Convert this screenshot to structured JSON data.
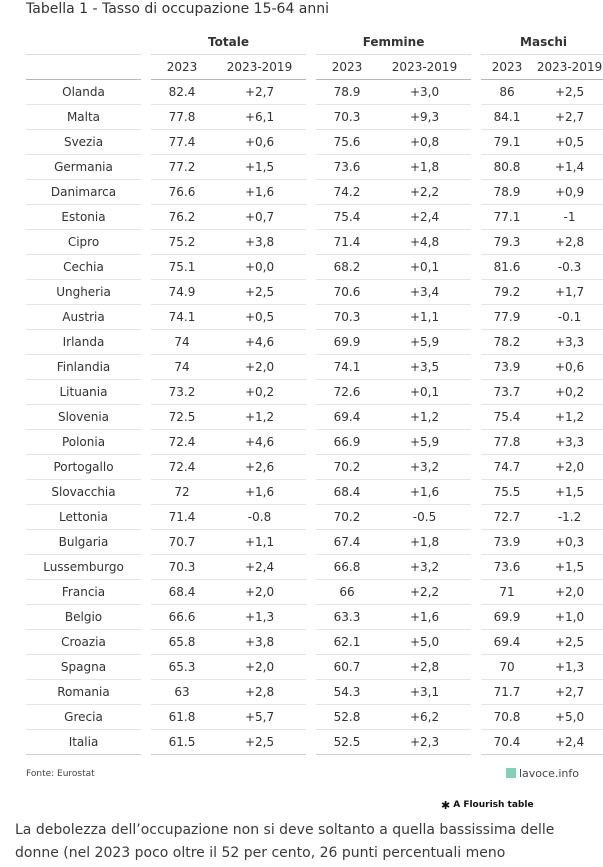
{
  "title": "Tabella 1 - Tasso di occupazione 15-64 anni",
  "table": {
    "groups": [
      "Totale",
      "Femmine",
      "Maschi"
    ],
    "subheaders": [
      "2023",
      "2023-2019",
      "2023",
      "2023-2019",
      "2023",
      "2023-2019"
    ],
    "rows": [
      [
        "Olanda",
        "82.4",
        "+2,7",
        "78.9",
        "+3,0",
        "86",
        "+2,5"
      ],
      [
        "Malta",
        "77.8",
        "+6,1",
        "70.3",
        "+9,3",
        "84.1",
        "+2,7"
      ],
      [
        "Svezia",
        "77.4",
        "+0,6",
        "75.6",
        "+0,8",
        "79.1",
        "+0,5"
      ],
      [
        "Germania",
        "77.2",
        "+1,5",
        "73.6",
        "+1,8",
        "80.8",
        "+1,4"
      ],
      [
        "Danimarca",
        "76.6",
        "+1,6",
        "74.2",
        "+2,2",
        "78.9",
        "+0,9"
      ],
      [
        "Estonia",
        "76.2",
        "+0,7",
        "75.4",
        "+2,4",
        "77.1",
        "-1"
      ],
      [
        "Cipro",
        "75.2",
        "+3,8",
        "71.4",
        "+4,8",
        "79.3",
        "+2,8"
      ],
      [
        "Cechia",
        "75.1",
        "+0,0",
        "68.2",
        "+0,1",
        "81.6",
        "-0.3"
      ],
      [
        "Ungheria",
        "74.9",
        "+2,5",
        "70.6",
        "+3,4",
        "79.2",
        "+1,7"
      ],
      [
        "Austria",
        "74.1",
        "+0,5",
        "70.3",
        "+1,1",
        "77.9",
        "-0.1"
      ],
      [
        "Irlanda",
        "74",
        "+4,6",
        "69.9",
        "+5,9",
        "78.2",
        "+3,3"
      ],
      [
        "Finlandia",
        "74",
        "+2,0",
        "74.1",
        "+3,5",
        "73.9",
        "+0,6"
      ],
      [
        "Lituania",
        "73.2",
        "+0,2",
        "72.6",
        "+0,1",
        "73.7",
        "+0,2"
      ],
      [
        "Slovenia",
        "72.5",
        "+1,2",
        "69.4",
        "+1,2",
        "75.4",
        "+1,2"
      ],
      [
        "Polonia",
        "72.4",
        "+4,6",
        "66.9",
        "+5,9",
        "77.8",
        "+3,3"
      ],
      [
        "Portogallo",
        "72.4",
        "+2,6",
        "70.2",
        "+3,2",
        "74.7",
        "+2,0"
      ],
      [
        "Slovacchia",
        "72",
        "+1,6",
        "68.4",
        "+1,6",
        "75.5",
        "+1,5"
      ],
      [
        "Lettonia",
        "71.4",
        "-0.8",
        "70.2",
        "-0.5",
        "72.7",
        "-1.2"
      ],
      [
        "Bulgaria",
        "70.7",
        "+1,1",
        "67.4",
        "+1,8",
        "73.9",
        "+0,3"
      ],
      [
        "Lussemburgo",
        "70.3",
        "+2,4",
        "66.8",
        "+3,2",
        "73.6",
        "+1,5"
      ],
      [
        "Francia",
        "68.4",
        "+2,0",
        "66",
        "+2,2",
        "71",
        "+2,0"
      ],
      [
        "Belgio",
        "66.6",
        "+1,3",
        "63.3",
        "+1,6",
        "69.9",
        "+1,0"
      ],
      [
        "Croazia",
        "65.8",
        "+3,8",
        "62.1",
        "+5,0",
        "69.4",
        "+2,5"
      ],
      [
        "Spagna",
        "65.3",
        "+2,0",
        "60.7",
        "+2,8",
        "70",
        "+1,3"
      ],
      [
        "Romania",
        "63",
        "+2,8",
        "54.3",
        "+3,1",
        "71.7",
        "+2,7"
      ],
      [
        "Grecia",
        "61.8",
        "+5,7",
        "52.8",
        "+6,2",
        "70.8",
        "+5,0"
      ],
      [
        "Italia",
        "61.5",
        "+2,5",
        "52.5",
        "+2,3",
        "70.4",
        "+2,4"
      ]
    ]
  },
  "source": "Fonte: Eurostat",
  "logo": {
    "text": "lavoce.info",
    "icon": "lavoce-logo-icon",
    "color": "#7fd1b9"
  },
  "flourish": {
    "text": "A Flourish table",
    "icon": "flourish-star-icon"
  },
  "article": {
    "line1": "La debolezza dell’occupazione non si deve soltanto a quella bassissima delle",
    "line2": "donne (nel 2023 poco oltre il 52 per cento, 26 punti percentuali meno"
  }
}
